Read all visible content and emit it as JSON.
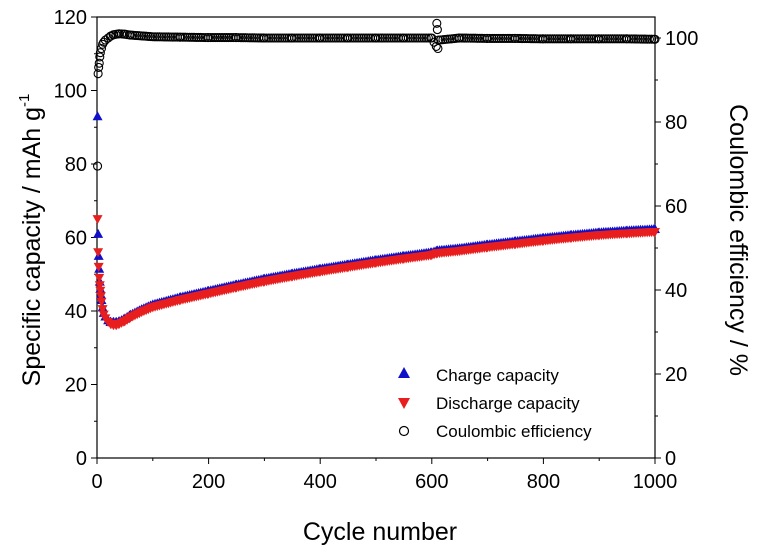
{
  "chart_data": {
    "type": "scatter",
    "xlabel": "Cycle number",
    "ylabel_left": "Specific capacity / mAh g",
    "ylabel_left_superscript": "-1",
    "ylabel_right": "Coulombic efficiency / %",
    "xlim": [
      0,
      1000
    ],
    "ylim_left": [
      0,
      120
    ],
    "ylim_right": [
      0,
      105
    ],
    "x_ticks": [
      "0",
      "200",
      "400",
      "600",
      "800",
      "1000"
    ],
    "y_left_ticks": [
      "0",
      "20",
      "40",
      "60",
      "80",
      "100",
      "120"
    ],
    "y_right_ticks": [
      "0",
      "20",
      "40",
      "60",
      "80",
      "100"
    ],
    "grid": false,
    "legend_position": "bottom-right",
    "series": [
      {
        "name": "Charge capacity",
        "axis": "left",
        "marker": "triangle-up",
        "color": "#1010c8",
        "x": [
          1,
          2,
          3,
          4,
          5,
          6,
          7,
          8,
          10,
          12,
          15,
          20,
          25,
          30,
          35,
          40,
          50,
          60,
          80,
          100,
          150,
          200,
          250,
          300,
          350,
          400,
          450,
          500,
          550,
          600,
          610,
          650,
          700,
          750,
          800,
          850,
          900,
          950,
          1000
        ],
        "values": [
          93,
          61,
          55,
          51.5,
          48,
          46,
          44.5,
          43,
          41,
          39.5,
          38.5,
          37.5,
          37,
          37,
          37,
          37.2,
          38,
          39,
          40.5,
          41.8,
          43.8,
          45.5,
          47.2,
          48.8,
          50.2,
          51.5,
          52.7,
          53.9,
          55,
          56,
          56.5,
          57.1,
          58.1,
          59,
          59.9,
          60.7,
          61.4,
          61.9,
          62.3
        ]
      },
      {
        "name": "Discharge capacity",
        "axis": "left",
        "marker": "triangle-down",
        "color": "#e81e1e",
        "x": [
          1,
          2,
          3,
          4,
          5,
          6,
          7,
          8,
          10,
          12,
          15,
          20,
          25,
          30,
          35,
          40,
          50,
          60,
          80,
          100,
          150,
          200,
          250,
          300,
          350,
          400,
          450,
          500,
          550,
          600,
          610,
          650,
          700,
          750,
          800,
          850,
          900,
          950,
          1000
        ],
        "values": [
          65,
          56,
          52,
          49,
          47,
          45.5,
          44,
          42.5,
          40.5,
          39,
          38,
          37,
          36.4,
          36.2,
          36.2,
          36.5,
          37.2,
          38.2,
          39.7,
          41,
          43,
          44.7,
          46.4,
          48,
          49.4,
          50.7,
          51.9,
          53.1,
          54.2,
          55.2,
          55.7,
          56.3,
          57.3,
          58.2,
          59.1,
          59.9,
          60.6,
          61.1,
          61.5
        ]
      },
      {
        "name": "Coulombic efficiency",
        "axis": "right",
        "marker": "circle-open",
        "color": "#000000",
        "x": [
          1,
          2,
          3,
          4,
          5,
          6,
          8,
          10,
          12,
          15,
          20,
          25,
          30,
          40,
          50,
          60,
          80,
          100,
          150,
          200,
          250,
          300,
          350,
          400,
          450,
          500,
          550,
          600,
          608,
          609,
          610,
          611,
          612,
          650,
          700,
          750,
          800,
          850,
          900,
          950,
          1000
        ],
        "values": [
          69.5,
          91.5,
          93,
          94,
          95.5,
          96.5,
          97.5,
          98.5,
          99,
          99.5,
          100,
          100.5,
          100.8,
          101,
          100.9,
          100.7,
          100.5,
          100.3,
          100.2,
          100.1,
          100.1,
          100,
          100,
          100,
          100,
          100,
          100,
          100,
          98,
          103.5,
          102,
          97.5,
          99.5,
          100,
          99.9,
          99.9,
          99.8,
          99.8,
          99.8,
          99.8,
          99.7
        ]
      }
    ]
  }
}
